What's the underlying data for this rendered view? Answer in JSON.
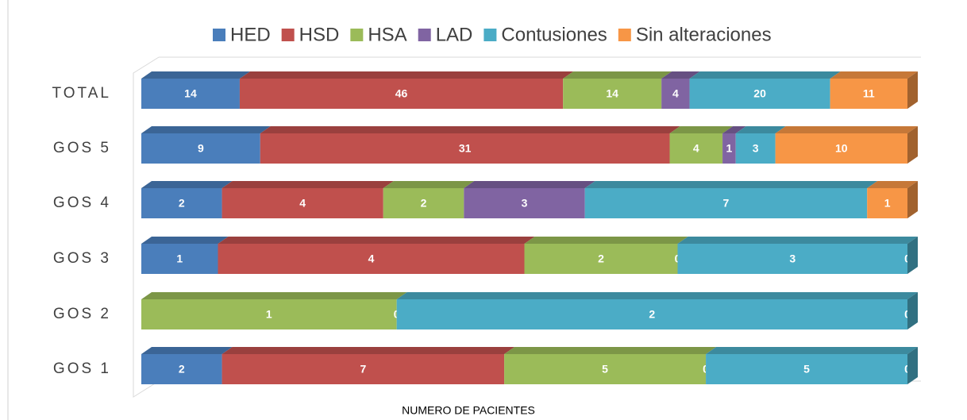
{
  "chart_data": {
    "type": "bar",
    "orientation": "horizontal",
    "stacking": "percent",
    "x_label": "NUMERO DE PACIENTES",
    "categories": [
      "TOTAL",
      "GOS 5",
      "GOS 4",
      "GOS 3",
      "GOS 2",
      "GOS 1"
    ],
    "series": [
      {
        "name": "HED",
        "color": "#4a7ebb",
        "values": [
          14,
          9,
          2,
          1,
          0,
          2
        ]
      },
      {
        "name": "HSD",
        "color": "#c0504d",
        "values": [
          46,
          31,
          4,
          4,
          0,
          7
        ]
      },
      {
        "name": "HSA",
        "color": "#9bbb59",
        "values": [
          14,
          4,
          2,
          2,
          1,
          5
        ]
      },
      {
        "name": "LAD",
        "color": "#8064a2",
        "values": [
          4,
          1,
          3,
          0,
          0,
          0
        ]
      },
      {
        "name": "Contusiones",
        "color": "#4bacc6",
        "values": [
          20,
          3,
          7,
          3,
          2,
          5
        ]
      },
      {
        "name": "Sin alteraciones",
        "color": "#f79646",
        "values": [
          11,
          10,
          1,
          0,
          0,
          0
        ]
      }
    ],
    "legend": "top",
    "data_labels": true
  }
}
